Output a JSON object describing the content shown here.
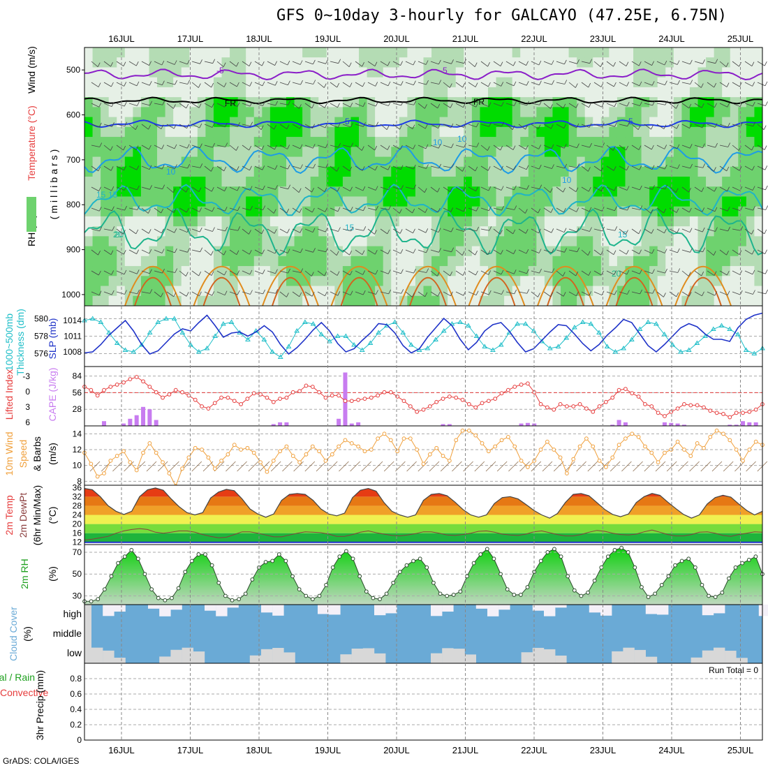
{
  "title": "GFS 0~10day 3-hourly for GALCAYO (47.25E, 6.75N)",
  "credit": "GrADS: COLA/IGES",
  "dates": [
    "16JUL",
    "17JUL",
    "18JUL",
    "19JUL",
    "20JUL",
    "21JUL",
    "22JUL",
    "23JUL",
    "24JUL",
    "25JUL"
  ],
  "colors": {
    "temp_neg": "#8a1ec8",
    "temp_zero": "#000000",
    "temp_5": "#1e3ce6",
    "temp_10": "#1e9ce6",
    "temp_15": "#1eb4c8",
    "temp_20": "#1eb48c",
    "temp_25": "#e08c1e",
    "temp_30": "#d2641e",
    "temp_35": "#dc1e8c",
    "rh_light": "#e6f0e6",
    "rh_mid": "#b4dcb4",
    "rh_green": "#6ed26e",
    "rh_bright": "#00dc00",
    "thickness": "#1ebec8",
    "slp": "#1e32c8",
    "lifted": "#e63c3c",
    "cape": "#c87cf0",
    "wind10": "#f0a03c",
    "barb": "#8a6a4a",
    "cloud": "#6aaad6",
    "cloud_bg": "#d8d8d8",
    "cloud_white": "#f4f0f8"
  },
  "panels": {
    "upper": {
      "left_label": "RH (%)",
      "left_label2": "Temperature (°C)",
      "left_label3": "Wind (m/s)",
      "axis_label": "(millibars)",
      "contour_labels": [
        "-5",
        "-5",
        "FR",
        "FR",
        "5",
        "5",
        "10",
        "10",
        "10",
        "15",
        "15",
        "20",
        "20",
        "15",
        "10",
        "15",
        "20"
      ]
    },
    "thickness": {
      "label1": "1000~500mb",
      "label2": "Thickness (dm)",
      "label_right": "SLP (mb)"
    },
    "lifted": {
      "label1": "Lifted Index",
      "label_right": "CAPE (J/kg)"
    },
    "wind10": {
      "label1": "10m Wind",
      "label2": "Speed",
      "label3": "& Barbs",
      "label_right": "(m/s)"
    },
    "temp2m": {
      "label1": "2m Temp",
      "label2": "2m DewPt",
      "label3": "(6hr Min/Max)",
      "label_right": "(°C)"
    },
    "rh2m": {
      "label1": "2m RH",
      "label_right": "(%)"
    },
    "cloud": {
      "label1": "Cloud Cover",
      "label2": "(%)",
      "levels": [
        "high",
        "middle",
        "low"
      ]
    },
    "precip": {
      "label1": "Total / Rain",
      "label2": "Convective",
      "label3": "3hr Precip (mm)",
      "run_total": "Run Total = 0"
    }
  },
  "chart_data": [
    {
      "type": "heatmap",
      "name": "pressure-level cross section",
      "y_axis": "millibars",
      "yticks": [
        500,
        600,
        700,
        800,
        900,
        1000
      ],
      "ylim": [
        1000,
        450
      ]
    },
    {
      "type": "line",
      "x_unit": "3-hour step from 16JUL 00Z",
      "yticks_left": [
        576,
        578,
        580
      ],
      "yticks_right": [
        1008,
        1011,
        1014
      ],
      "series": [
        {
          "name": "Thickness (dm)",
          "axis": "left",
          "values": [
            579.8,
            580.0,
            579.6,
            578.4,
            577.2,
            576.4,
            576.2,
            577.0,
            578.4,
            579.6,
            580.0,
            580.0,
            578.4,
            577.0,
            576.2,
            576.6,
            578.0,
            579.4,
            579.6,
            578.4,
            577.6,
            578.6,
            577.6,
            576.2,
            575.6,
            576.8,
            578.6,
            579.6,
            579.4,
            578.2,
            577.4,
            578.0,
            578.0,
            577.0,
            576.4,
            577.2,
            578.4,
            579.2,
            579.6,
            578.4,
            577.0,
            576.4,
            576.6,
            577.6,
            578.6,
            579.4,
            579.6,
            579.2,
            578.0,
            576.8,
            576.4,
            577.0,
            578.4,
            579.4,
            579.4,
            578.6,
            577.4,
            576.6,
            576.8,
            577.8,
            579.0,
            579.6,
            579.4,
            578.4,
            576.8,
            576.2,
            576.6,
            577.6,
            578.8,
            579.6,
            579.4,
            578.2,
            577.0,
            576.2,
            576.4,
            577.2,
            578.0,
            578.8,
            579.2,
            578.8,
            578.2,
            576.4,
            576.0,
            576.6
          ]
        },
        {
          "name": "SLP (mb)",
          "axis": "right",
          "values": [
            1007.8,
            1008.0,
            1009.4,
            1011.2,
            1012.6,
            1014.0,
            1012.0,
            1009.4,
            1007.6,
            1008.2,
            1009.8,
            1011.4,
            1012.4,
            1012.0,
            1013.6,
            1015.0,
            1013.0,
            1010.8,
            1011.6,
            1011.8,
            1011.0,
            1011.8,
            1013.0,
            1011.8,
            1009.4,
            1007.6,
            1008.8,
            1010.4,
            1012.2,
            1013.6,
            1012.0,
            1009.6,
            1008.0,
            1008.6,
            1010.2,
            1011.6,
            1013.4,
            1013.2,
            1011.6,
            1009.2,
            1007.8,
            1008.6,
            1010.8,
            1012.6,
            1014.4,
            1013.0,
            1010.4,
            1008.4,
            1009.8,
            1012.0,
            1013.2,
            1013.6,
            1012.0,
            1009.8,
            1008.0,
            1008.6,
            1010.2,
            1011.8,
            1013.2,
            1013.0,
            1011.4,
            1009.6,
            1008.2,
            1009.4,
            1011.2,
            1012.6,
            1014.2,
            1013.6,
            1011.4,
            1009.2,
            1008.0,
            1009.4,
            1011.0,
            1012.6,
            1013.4,
            1012.8,
            1011.4,
            1010.4,
            1010.4,
            1010.0,
            1012.6,
            1014.2,
            1015.0,
            1015.4
          ]
        }
      ]
    },
    {
      "type": "bar",
      "name": "Lifted Index / CAPE",
      "yticks_left": [
        "-3",
        "0",
        "3",
        "6"
      ],
      "yticks_right": [
        28,
        56,
        84
      ],
      "series": [
        {
          "name": "CAPE (J/kg)",
          "values": [
            0,
            0,
            0,
            8,
            0,
            0,
            4,
            12,
            18,
            32,
            28,
            10,
            0,
            0,
            0,
            0,
            0,
            0,
            0,
            0,
            0,
            0,
            0,
            0,
            0,
            0,
            0,
            0,
            0,
            3,
            6,
            6,
            0,
            0,
            0,
            0,
            0,
            0,
            0,
            12,
            90,
            4,
            6,
            0,
            0,
            0,
            0,
            0,
            0,
            0,
            0,
            0,
            0,
            0,
            0,
            3,
            3,
            0,
            0,
            0,
            0,
            0,
            0,
            0,
            0,
            0,
            0,
            4,
            5,
            4,
            0,
            0,
            0,
            0,
            0,
            0,
            0,
            0,
            0,
            0,
            0,
            2,
            10,
            6,
            0,
            0,
            0,
            0,
            0,
            6,
            5,
            4,
            2,
            0,
            0,
            0,
            0,
            0,
            0,
            2,
            2,
            8,
            6,
            6,
            0
          ]
        },
        {
          "name": "Lifted Index",
          "values": [
            -1.2,
            -0.6,
            0.4,
            -0.6,
            -1.2,
            -1.6,
            -2.0,
            -2.6,
            -3.0,
            -2.2,
            -1.2,
            -0.2,
            0.8,
            0.2,
            -0.6,
            -0.2,
            0.4,
            1.2,
            2.4,
            2.8,
            1.8,
            0.8,
            0.8,
            1.4,
            2.0,
            1.0,
            0.0,
            0.2,
            0.8,
            1.6,
            1.0,
            0.8,
            -0.2,
            -0.4,
            -1.4,
            -1.2,
            -0.2,
            0.8,
            0.4,
            0.4,
            1.4,
            1.4,
            1.2,
            1.0,
            0.8,
            0.4,
            -0.2,
            -0.2,
            0.6,
            1.4,
            2.4,
            3.4,
            3.0,
            2.4,
            1.6,
            1.0,
            0.6,
            0.8,
            1.2,
            2.0,
            2.6,
            1.8,
            1.4,
            1.0,
            0.0,
            -0.6,
            -1.2,
            -1.6,
            -1.8,
            -0.2,
            2.0,
            2.6,
            3.0,
            2.0,
            2.4,
            2.4,
            2.0,
            2.8,
            3.4,
            2.4,
            1.6,
            0.8,
            -0.6,
            -0.8,
            0.0,
            0.6,
            2.0,
            2.4,
            3.6,
            4.2,
            3.4,
            2.8,
            2.0,
            2.2,
            2.2,
            2.6,
            3.2,
            3.6,
            3.8,
            4.4,
            3.6,
            3.6,
            3.4,
            3.0,
            2.0
          ]
        }
      ]
    },
    {
      "type": "line",
      "name": "10m Wind Speed",
      "yticks": [
        8,
        10,
        12,
        14
      ],
      "ylim": [
        7.5,
        15
      ],
      "series": [
        {
          "name": "10m Wind Speed",
          "values": [
            11.6,
            10.2,
            8.6,
            9.0,
            10.6,
            11.2,
            11.8,
            10.4,
            9.4,
            11.6,
            12.8,
            11.6,
            10.4,
            9.0,
            7.4,
            9.6,
            11.0,
            12.2,
            12.0,
            11.0,
            9.6,
            10.6,
            11.4,
            12.6,
            12.0,
            12.2,
            11.6,
            10.4,
            9.2,
            10.6,
            11.8,
            12.4,
            11.2,
            10.4,
            11.4,
            12.4,
            11.8,
            10.6,
            11.4,
            12.4,
            13.2,
            12.8,
            12.4,
            11.8,
            12.0,
            13.4,
            14.0,
            13.2,
            11.8,
            13.4,
            13.4,
            12.0,
            10.2,
            11.4,
            12.2,
            11.2,
            10.6,
            13.2,
            14.4,
            14.4,
            13.8,
            12.8,
            11.8,
            12.4,
            13.2,
            13.6,
            12.4,
            10.6,
            9.8,
            10.6,
            12.0,
            13.0,
            12.0,
            11.0,
            9.0,
            10.8,
            12.4,
            13.4,
            12.4,
            10.6,
            9.8,
            11.0,
            12.6,
            13.4,
            14.0,
            13.6,
            12.4,
            11.6,
            10.4,
            11.6,
            12.0,
            13.0,
            12.0,
            11.2,
            12.8,
            12.2,
            13.6,
            14.4,
            14.0,
            13.2,
            12.0,
            10.6,
            12.0,
            13.0,
            12.6
          ]
        }
      ]
    },
    {
      "type": "area",
      "name": "2m Temp / DewPt",
      "yticks": [
        12,
        16,
        20,
        24,
        28,
        32,
        36
      ],
      "ylim": [
        11,
        37
      ],
      "series": [
        {
          "name": "2m Temp",
          "values": [
            35.6,
            35.0,
            32.0,
            28.0,
            25.6,
            24.2,
            25.6,
            32.0,
            35.0,
            35.8,
            34.8,
            31.0,
            27.6,
            25.0,
            24.0,
            25.0,
            31.4,
            34.0,
            35.2,
            34.6,
            31.0,
            26.6,
            24.4,
            23.0,
            24.4,
            30.4,
            33.0,
            33.4,
            33.0,
            30.4,
            26.6,
            24.4,
            23.6,
            24.8,
            31.6,
            34.8,
            35.6,
            34.4,
            29.4,
            25.6,
            24.0,
            23.0,
            24.0,
            30.4,
            33.0,
            33.4,
            32.4,
            29.6,
            26.4,
            24.0,
            23.0,
            24.0,
            29.0,
            31.6,
            32.0,
            31.0,
            28.6,
            26.0,
            24.0,
            22.6,
            24.6,
            29.4,
            33.0,
            33.4,
            32.4,
            29.4,
            26.4,
            24.2,
            23.2,
            24.4,
            29.4,
            32.0,
            33.4,
            32.6,
            29.6,
            26.8,
            24.2,
            22.6,
            24.0,
            28.8,
            31.6,
            32.6,
            31.8,
            28.8,
            26.0,
            24.0,
            25.6
          ]
        },
        {
          "name": "2m DewPt",
          "values": [
            13.0,
            13.4,
            14.0,
            14.6,
            16.0,
            17.0,
            17.6,
            18.0,
            17.6,
            16.4,
            16.0,
            16.4,
            17.0,
            17.0,
            16.4,
            15.4,
            14.6,
            14.0,
            14.2,
            15.4,
            16.6,
            16.6,
            16.0,
            15.2,
            14.4,
            14.4,
            15.2,
            16.0,
            16.6,
            16.4,
            16.2,
            15.6,
            14.6,
            14.6,
            15.4,
            16.4,
            17.0,
            16.2,
            15.6,
            15.0,
            14.8,
            15.2,
            15.8,
            16.6,
            16.6,
            16.0,
            15.2,
            15.0,
            15.4,
            16.0,
            16.8,
            17.0,
            16.4,
            15.6,
            15.2,
            15.0,
            15.6,
            16.6,
            17.0,
            16.2,
            15.4,
            14.8,
            14.8,
            15.4,
            16.4,
            17.2,
            16.8,
            16.0,
            15.4,
            15.2,
            15.6,
            16.6,
            17.4,
            16.4,
            15.4,
            14.8,
            14.8,
            15.4,
            16.4,
            16.6,
            16.0,
            15.0,
            14.6,
            15.4,
            16.0,
            16.6,
            16.4
          ]
        }
      ]
    },
    {
      "type": "area",
      "name": "2m RH",
      "yticks": [
        30,
        50,
        70
      ],
      "ylim": [
        22,
        77
      ],
      "series": [
        {
          "name": "2m RH",
          "values": [
            25,
            25,
            27,
            36,
            48,
            60,
            66,
            72,
            64,
            50,
            36,
            28,
            26,
            28,
            37,
            52,
            62,
            68,
            68,
            58,
            42,
            30,
            26,
            27,
            32,
            45,
            56,
            61,
            62,
            68,
            62,
            48,
            36,
            30,
            27,
            30,
            40,
            56,
            66,
            71,
            64,
            48,
            34,
            28,
            27,
            32,
            42,
            52,
            58,
            62,
            64,
            56,
            42,
            32,
            30,
            31,
            34,
            48,
            60,
            68,
            73,
            64,
            50,
            36,
            31,
            31,
            38,
            52,
            62,
            70,
            73,
            66,
            48,
            35,
            30,
            33,
            44,
            56,
            66,
            72,
            74,
            70,
            56,
            38,
            29,
            32,
            40,
            48,
            58,
            62,
            64,
            56,
            40,
            30,
            29,
            33,
            46,
            56,
            60,
            63,
            66,
            50
          ]
        }
      ]
    },
    {
      "type": "bar",
      "name": "Cloud Cover",
      "series": [
        {
          "name": "high",
          "values": [
            0,
            0,
            0,
            0,
            0,
            0,
            0,
            0,
            0,
            0,
            0,
            0,
            0,
            0,
            0,
            0,
            0,
            0,
            0,
            0,
            0,
            0,
            0,
            0,
            0,
            0,
            0,
            0,
            0,
            0,
            0,
            0,
            0,
            0,
            0,
            0,
            0,
            0,
            0,
            0,
            0,
            0,
            0,
            0,
            0,
            0,
            0,
            0,
            0,
            0,
            0,
            0,
            0,
            0,
            0,
            0,
            0,
            0,
            0,
            0,
            0,
            0,
            0,
            0,
            0,
            0,
            0,
            0,
            0,
            0,
            0,
            0,
            0,
            0,
            0,
            0,
            0,
            0,
            0,
            0,
            0,
            0,
            0,
            0
          ]
        },
        {
          "name": "middle",
          "values": []
        },
        {
          "name": "low",
          "values": []
        }
      ]
    },
    {
      "type": "bar",
      "name": "3hr Precip (mm)",
      "yticks": [
        0,
        0.2,
        0.4,
        0.6,
        0.8
      ],
      "ylim": [
        0,
        1
      ],
      "series": [
        {
          "name": "Total / Rain",
          "values": []
        }
      ]
    }
  ]
}
